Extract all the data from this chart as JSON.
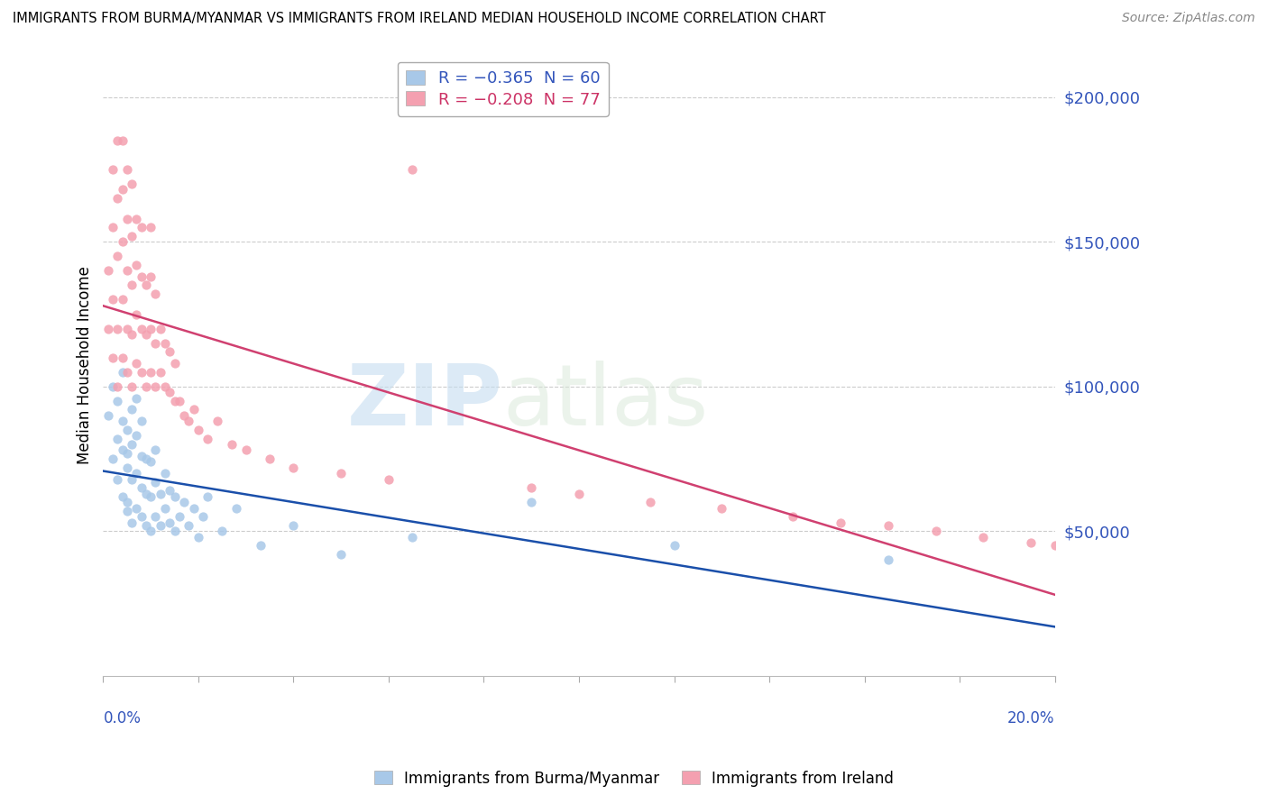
{
  "title": "IMMIGRANTS FROM BURMA/MYANMAR VS IMMIGRANTS FROM IRELAND MEDIAN HOUSEHOLD INCOME CORRELATION CHART",
  "source": "Source: ZipAtlas.com",
  "ylabel": "Median Household Income",
  "xlim": [
    0.0,
    0.2
  ],
  "ylim": [
    0,
    215000
  ],
  "watermark_zip": "ZIP",
  "watermark_atlas": "atlas",
  "color_burma": "#a8c8e8",
  "color_ireland": "#f4a0b0",
  "line_color_burma": "#1a4faa",
  "line_color_ireland": "#d04070",
  "legend_label_burma": "R = −0.365  N = 60",
  "legend_label_ireland": "R = −0.208  N = 77",
  "legend_name_burma": "Immigrants from Burma/Myanmar",
  "legend_name_ireland": "Immigrants from Ireland",
  "ytick_vals": [
    50000,
    100000,
    150000,
    200000
  ],
  "ytick_labels": [
    "$50,000",
    "$100,000",
    "$150,000",
    "$200,000"
  ],
  "burma_x": [
    0.001,
    0.002,
    0.002,
    0.003,
    0.003,
    0.003,
    0.004,
    0.004,
    0.004,
    0.004,
    0.005,
    0.005,
    0.005,
    0.005,
    0.005,
    0.006,
    0.006,
    0.006,
    0.006,
    0.007,
    0.007,
    0.007,
    0.007,
    0.008,
    0.008,
    0.008,
    0.008,
    0.009,
    0.009,
    0.009,
    0.01,
    0.01,
    0.01,
    0.011,
    0.011,
    0.011,
    0.012,
    0.012,
    0.013,
    0.013,
    0.014,
    0.014,
    0.015,
    0.015,
    0.016,
    0.017,
    0.018,
    0.019,
    0.02,
    0.021,
    0.022,
    0.025,
    0.028,
    0.033,
    0.04,
    0.05,
    0.065,
    0.09,
    0.12,
    0.165
  ],
  "burma_y": [
    90000,
    75000,
    100000,
    68000,
    82000,
    95000,
    62000,
    78000,
    88000,
    105000,
    57000,
    72000,
    85000,
    60000,
    77000,
    53000,
    68000,
    80000,
    92000,
    58000,
    70000,
    83000,
    96000,
    55000,
    65000,
    76000,
    88000,
    52000,
    63000,
    75000,
    50000,
    62000,
    74000,
    55000,
    67000,
    78000,
    52000,
    63000,
    58000,
    70000,
    53000,
    64000,
    50000,
    62000,
    55000,
    60000,
    52000,
    58000,
    48000,
    55000,
    62000,
    50000,
    58000,
    45000,
    52000,
    42000,
    48000,
    60000,
    45000,
    40000
  ],
  "ireland_x": [
    0.001,
    0.001,
    0.002,
    0.002,
    0.002,
    0.002,
    0.003,
    0.003,
    0.003,
    0.003,
    0.003,
    0.004,
    0.004,
    0.004,
    0.004,
    0.004,
    0.005,
    0.005,
    0.005,
    0.005,
    0.005,
    0.006,
    0.006,
    0.006,
    0.006,
    0.006,
    0.007,
    0.007,
    0.007,
    0.007,
    0.008,
    0.008,
    0.008,
    0.008,
    0.009,
    0.009,
    0.009,
    0.01,
    0.01,
    0.01,
    0.01,
    0.011,
    0.011,
    0.011,
    0.012,
    0.012,
    0.013,
    0.013,
    0.014,
    0.014,
    0.015,
    0.015,
    0.016,
    0.017,
    0.018,
    0.019,
    0.02,
    0.022,
    0.024,
    0.027,
    0.03,
    0.035,
    0.04,
    0.05,
    0.06,
    0.065,
    0.09,
    0.1,
    0.115,
    0.13,
    0.145,
    0.155,
    0.165,
    0.175,
    0.185,
    0.195,
    0.2
  ],
  "ireland_y": [
    120000,
    140000,
    110000,
    130000,
    155000,
    175000,
    100000,
    120000,
    145000,
    165000,
    185000,
    110000,
    130000,
    150000,
    168000,
    185000,
    105000,
    120000,
    140000,
    158000,
    175000,
    100000,
    118000,
    135000,
    152000,
    170000,
    108000,
    125000,
    142000,
    158000,
    105000,
    120000,
    138000,
    155000,
    100000,
    118000,
    135000,
    105000,
    120000,
    138000,
    155000,
    100000,
    115000,
    132000,
    105000,
    120000,
    100000,
    115000,
    98000,
    112000,
    95000,
    108000,
    95000,
    90000,
    88000,
    92000,
    85000,
    82000,
    88000,
    80000,
    78000,
    75000,
    72000,
    70000,
    68000,
    175000,
    65000,
    63000,
    60000,
    58000,
    55000,
    53000,
    52000,
    50000,
    48000,
    46000,
    45000
  ]
}
